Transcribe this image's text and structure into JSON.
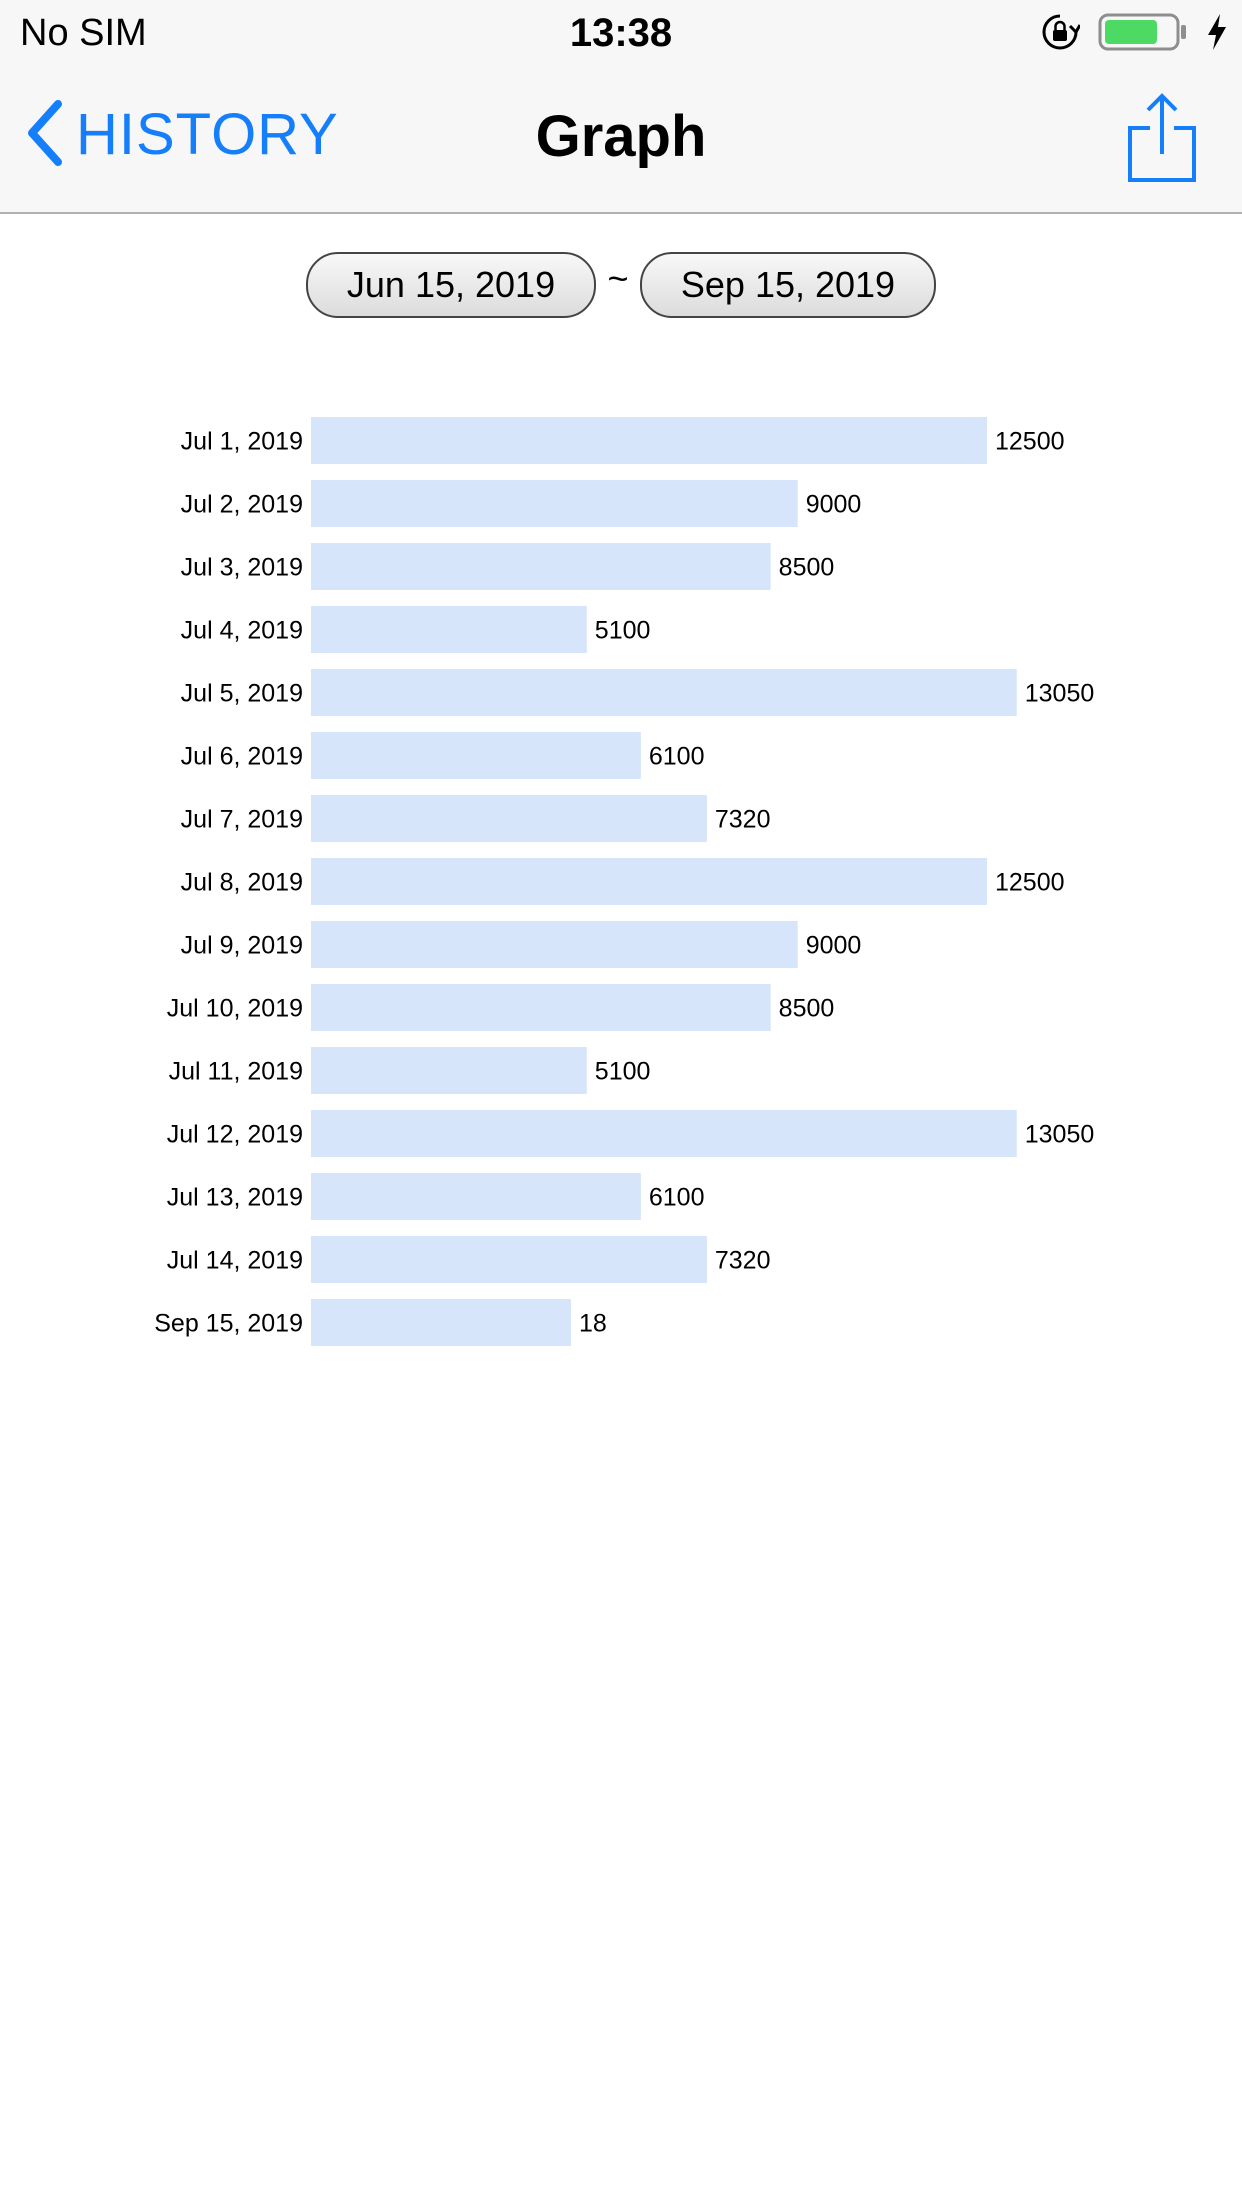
{
  "status_bar": {
    "carrier": "No SIM",
    "time": "13:38",
    "battery_color": "#4cd964",
    "icons": [
      "orientation-lock-icon",
      "battery-icon",
      "charging-bolt-icon"
    ]
  },
  "nav": {
    "back_label": "HISTORY",
    "title": "Graph",
    "accent_color": "#147efb",
    "icons": [
      "chevron-left-icon",
      "share-icon"
    ]
  },
  "date_range": {
    "start": "Jun 15, 2019",
    "separator": "~",
    "end": "Sep 15, 2019"
  },
  "chart_data": {
    "type": "bar",
    "orientation": "horizontal",
    "bar_color": "#d6e5fa",
    "categories": [
      "Jul 1, 2019",
      "Jul 2, 2019",
      "Jul 3, 2019",
      "Jul 4, 2019",
      "Jul 5, 2019",
      "Jul 6, 2019",
      "Jul 7, 2019",
      "Jul 8, 2019",
      "Jul 9, 2019",
      "Jul 10, 2019",
      "Jul 11, 2019",
      "Jul 12, 2019",
      "Jul 13, 2019",
      "Jul 14, 2019",
      "Sep 15, 2019"
    ],
    "values": [
      12500,
      9000,
      8500,
      5100,
      13050,
      6100,
      7320,
      12500,
      9000,
      8500,
      5100,
      13050,
      6100,
      7320,
      18
    ],
    "data_labels": [
      "12500",
      "9000",
      "8500",
      "5100",
      "13050",
      "6100",
      "7320",
      "12500",
      "9000",
      "8500",
      "5100",
      "13050",
      "6100",
      "7320",
      "18"
    ],
    "grid": false,
    "legend": "none"
  }
}
